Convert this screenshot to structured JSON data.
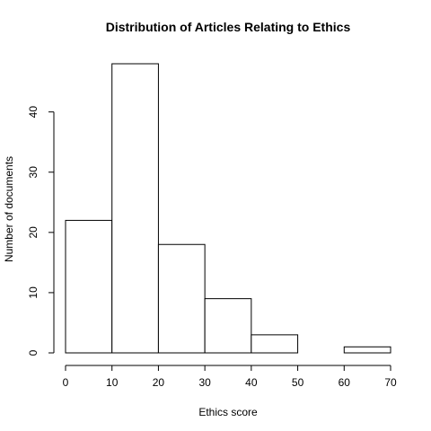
{
  "chart_data": {
    "type": "bar",
    "subtype": "histogram",
    "title": "Distribution of Articles Relating to Ethics",
    "xlabel": "Ethics score",
    "ylabel": "Number of documents",
    "bins": [
      {
        "from": 0,
        "to": 10,
        "value": 22
      },
      {
        "from": 10,
        "to": 20,
        "value": 48
      },
      {
        "from": 20,
        "to": 30,
        "value": 18
      },
      {
        "from": 30,
        "to": 40,
        "value": 9
      },
      {
        "from": 40,
        "to": 50,
        "value": 3
      },
      {
        "from": 50,
        "to": 60,
        "value": 0
      },
      {
        "from": 60,
        "to": 70,
        "value": 1
      }
    ],
    "xlim": [
      0,
      70
    ],
    "ylim": [
      0,
      48
    ],
    "x_ticks": [
      0,
      10,
      20,
      30,
      40,
      50,
      60,
      70
    ],
    "y_ticks": [
      0,
      10,
      20,
      30,
      40
    ],
    "bar_fill": "#ffffff",
    "bar_stroke": "#000000",
    "grid": false,
    "legend": "none"
  }
}
